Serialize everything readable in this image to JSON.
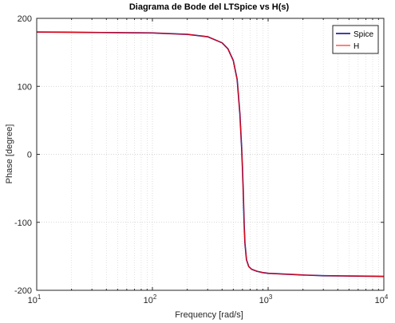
{
  "chart_data": {
    "type": "line",
    "title": "Diagrama de Bode del LTSpice vs H(s)",
    "xlabel": "Frequency [rad/s]",
    "ylabel": "Phase [degree]",
    "x_scale": "log",
    "xlim": [
      10,
      10000
    ],
    "ylim": [
      -200,
      200
    ],
    "x_ticks": [
      10,
      100,
      1000,
      10000
    ],
    "x_tick_labels": [
      {
        "base": "10",
        "exp": "1"
      },
      {
        "base": "10",
        "exp": "2"
      },
      {
        "base": "10",
        "exp": "3"
      },
      {
        "base": "10",
        "exp": "4"
      }
    ],
    "y_ticks": [
      -200,
      -100,
      0,
      100,
      200
    ],
    "y_tick_labels": [
      "-200",
      "-100",
      "0",
      "100",
      "200"
    ],
    "grid": true,
    "legend_position": "top-right",
    "series": [
      {
        "name": "Spice",
        "color": "#00008b",
        "x": [
          10,
          20,
          50,
          100,
          200,
          300,
          400,
          450,
          500,
          540,
          570,
          590,
          600,
          610,
          620,
          630,
          650,
          680,
          720,
          800,
          900,
          1000,
          1500,
          2000,
          3000,
          5000,
          10000
        ],
        "y": [
          179.8,
          179.5,
          179.0,
          178.5,
          176.5,
          173,
          164,
          155,
          138,
          110,
          60,
          10,
          -20,
          -55,
          -100,
          -130,
          -155,
          -165,
          -169,
          -172,
          -174,
          -175,
          -176.5,
          -177.5,
          -178.5,
          -179,
          -179.5
        ]
      },
      {
        "name": "H",
        "color": "#ff0000",
        "x": [
          10,
          20,
          50,
          100,
          200,
          300,
          400,
          450,
          500,
          540,
          570,
          590,
          600,
          610,
          620,
          630,
          650,
          680,
          720,
          800,
          900,
          1000,
          1500,
          2000,
          3000,
          5000,
          10000
        ],
        "y": [
          179.8,
          179.5,
          179.0,
          178.5,
          176.5,
          173,
          164,
          155,
          138,
          110,
          60,
          10,
          -20,
          -55,
          -100,
          -130,
          -155,
          -165,
          -169,
          -172,
          -174,
          -175,
          -176.5,
          -177.5,
          -178.5,
          -179,
          -179.5
        ]
      }
    ]
  }
}
